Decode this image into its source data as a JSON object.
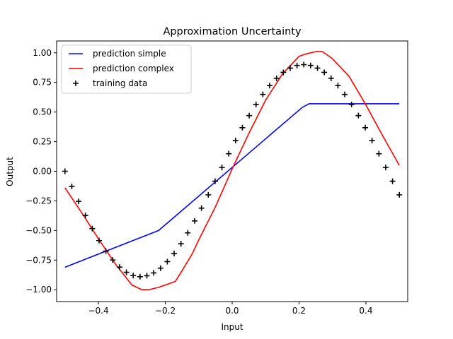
{
  "chart_data": {
    "type": "line",
    "title": "Approximation Uncertainty",
    "xlabel": "Input",
    "ylabel": "Output",
    "xlim": [
      -0.525,
      0.525
    ],
    "ylim": [
      -1.1,
      1.1
    ],
    "x_ticks": [
      -0.4,
      -0.2,
      0.0,
      0.2,
      0.4
    ],
    "x_tick_labels": [
      "−0.4",
      "−0.2",
      "0.0",
      "0.2",
      "0.4"
    ],
    "y_ticks": [
      -1.0,
      -0.75,
      -0.5,
      -0.25,
      0.0,
      0.25,
      0.5,
      0.75,
      1.0
    ],
    "y_tick_labels": [
      "−1.00",
      "−0.75",
      "−0.50",
      "−0.25",
      "0.00",
      "0.25",
      "0.50",
      "0.75",
      "1.00"
    ],
    "grid": false,
    "legend_position": "top-left",
    "series": [
      {
        "name": "prediction simple",
        "kind": "line",
        "color": "#0000ff",
        "x": [
          -0.5,
          -0.22,
          0.21,
          0.23,
          0.5
        ],
        "y": [
          -0.81,
          -0.5,
          0.54,
          0.57,
          0.57
        ]
      },
      {
        "name": "prediction complex",
        "kind": "line",
        "color": "#ff0000",
        "x": [
          -0.5,
          -0.45,
          -0.4,
          -0.35,
          -0.3,
          -0.27,
          -0.25,
          -0.22,
          -0.2,
          -0.17,
          -0.15,
          -0.12,
          -0.1,
          -0.05,
          0.0,
          0.05,
          0.1,
          0.15,
          0.2,
          0.22,
          0.25,
          0.27,
          0.3,
          0.35,
          0.4,
          0.45,
          0.5
        ],
        "y": [
          -0.14,
          -0.35,
          -0.57,
          -0.78,
          -0.96,
          -1.0,
          -1.0,
          -0.98,
          -0.96,
          -0.93,
          -0.84,
          -0.7,
          -0.58,
          -0.3,
          0.02,
          0.32,
          0.6,
          0.82,
          0.97,
          0.99,
          1.01,
          1.01,
          0.95,
          0.8,
          0.56,
          0.3,
          0.05
        ]
      },
      {
        "name": "training data",
        "kind": "scatter",
        "marker": "+",
        "color": "#000000",
        "x": [
          -0.5,
          -0.4796,
          -0.4592,
          -0.4388,
          -0.4184,
          -0.398,
          -0.3776,
          -0.3571,
          -0.3367,
          -0.3163,
          -0.2959,
          -0.2755,
          -0.2551,
          -0.2347,
          -0.2143,
          -0.1939,
          -0.1735,
          -0.1531,
          -0.1327,
          -0.1122,
          -0.0918,
          -0.0714,
          -0.051,
          -0.0306,
          -0.0102,
          0.0102,
          0.0306,
          0.051,
          0.0714,
          0.0918,
          0.1122,
          0.1327,
          0.1531,
          0.1735,
          0.1939,
          0.2143,
          0.2347,
          0.2551,
          0.2755,
          0.2959,
          0.3163,
          0.3367,
          0.3571,
          0.3776,
          0.398,
          0.4184,
          0.4388,
          0.4592,
          0.4796,
          0.5
        ],
        "y": [
          0.0,
          -0.128,
          -0.254,
          -0.373,
          -0.484,
          -0.585,
          -0.674,
          -0.749,
          -0.809,
          -0.853,
          -0.88,
          -0.89,
          -0.882,
          -0.858,
          -0.818,
          -0.763,
          -0.694,
          -0.612,
          -0.52,
          -0.419,
          -0.311,
          -0.199,
          -0.084,
          0.032,
          0.148,
          0.26,
          0.368,
          0.47,
          0.564,
          0.649,
          0.723,
          0.785,
          0.835,
          0.871,
          0.893,
          0.9,
          0.893,
          0.871,
          0.835,
          0.785,
          0.723,
          0.649,
          0.564,
          0.47,
          0.368,
          0.26,
          0.148,
          0.032,
          -0.084,
          -0.199
        ]
      }
    ]
  }
}
